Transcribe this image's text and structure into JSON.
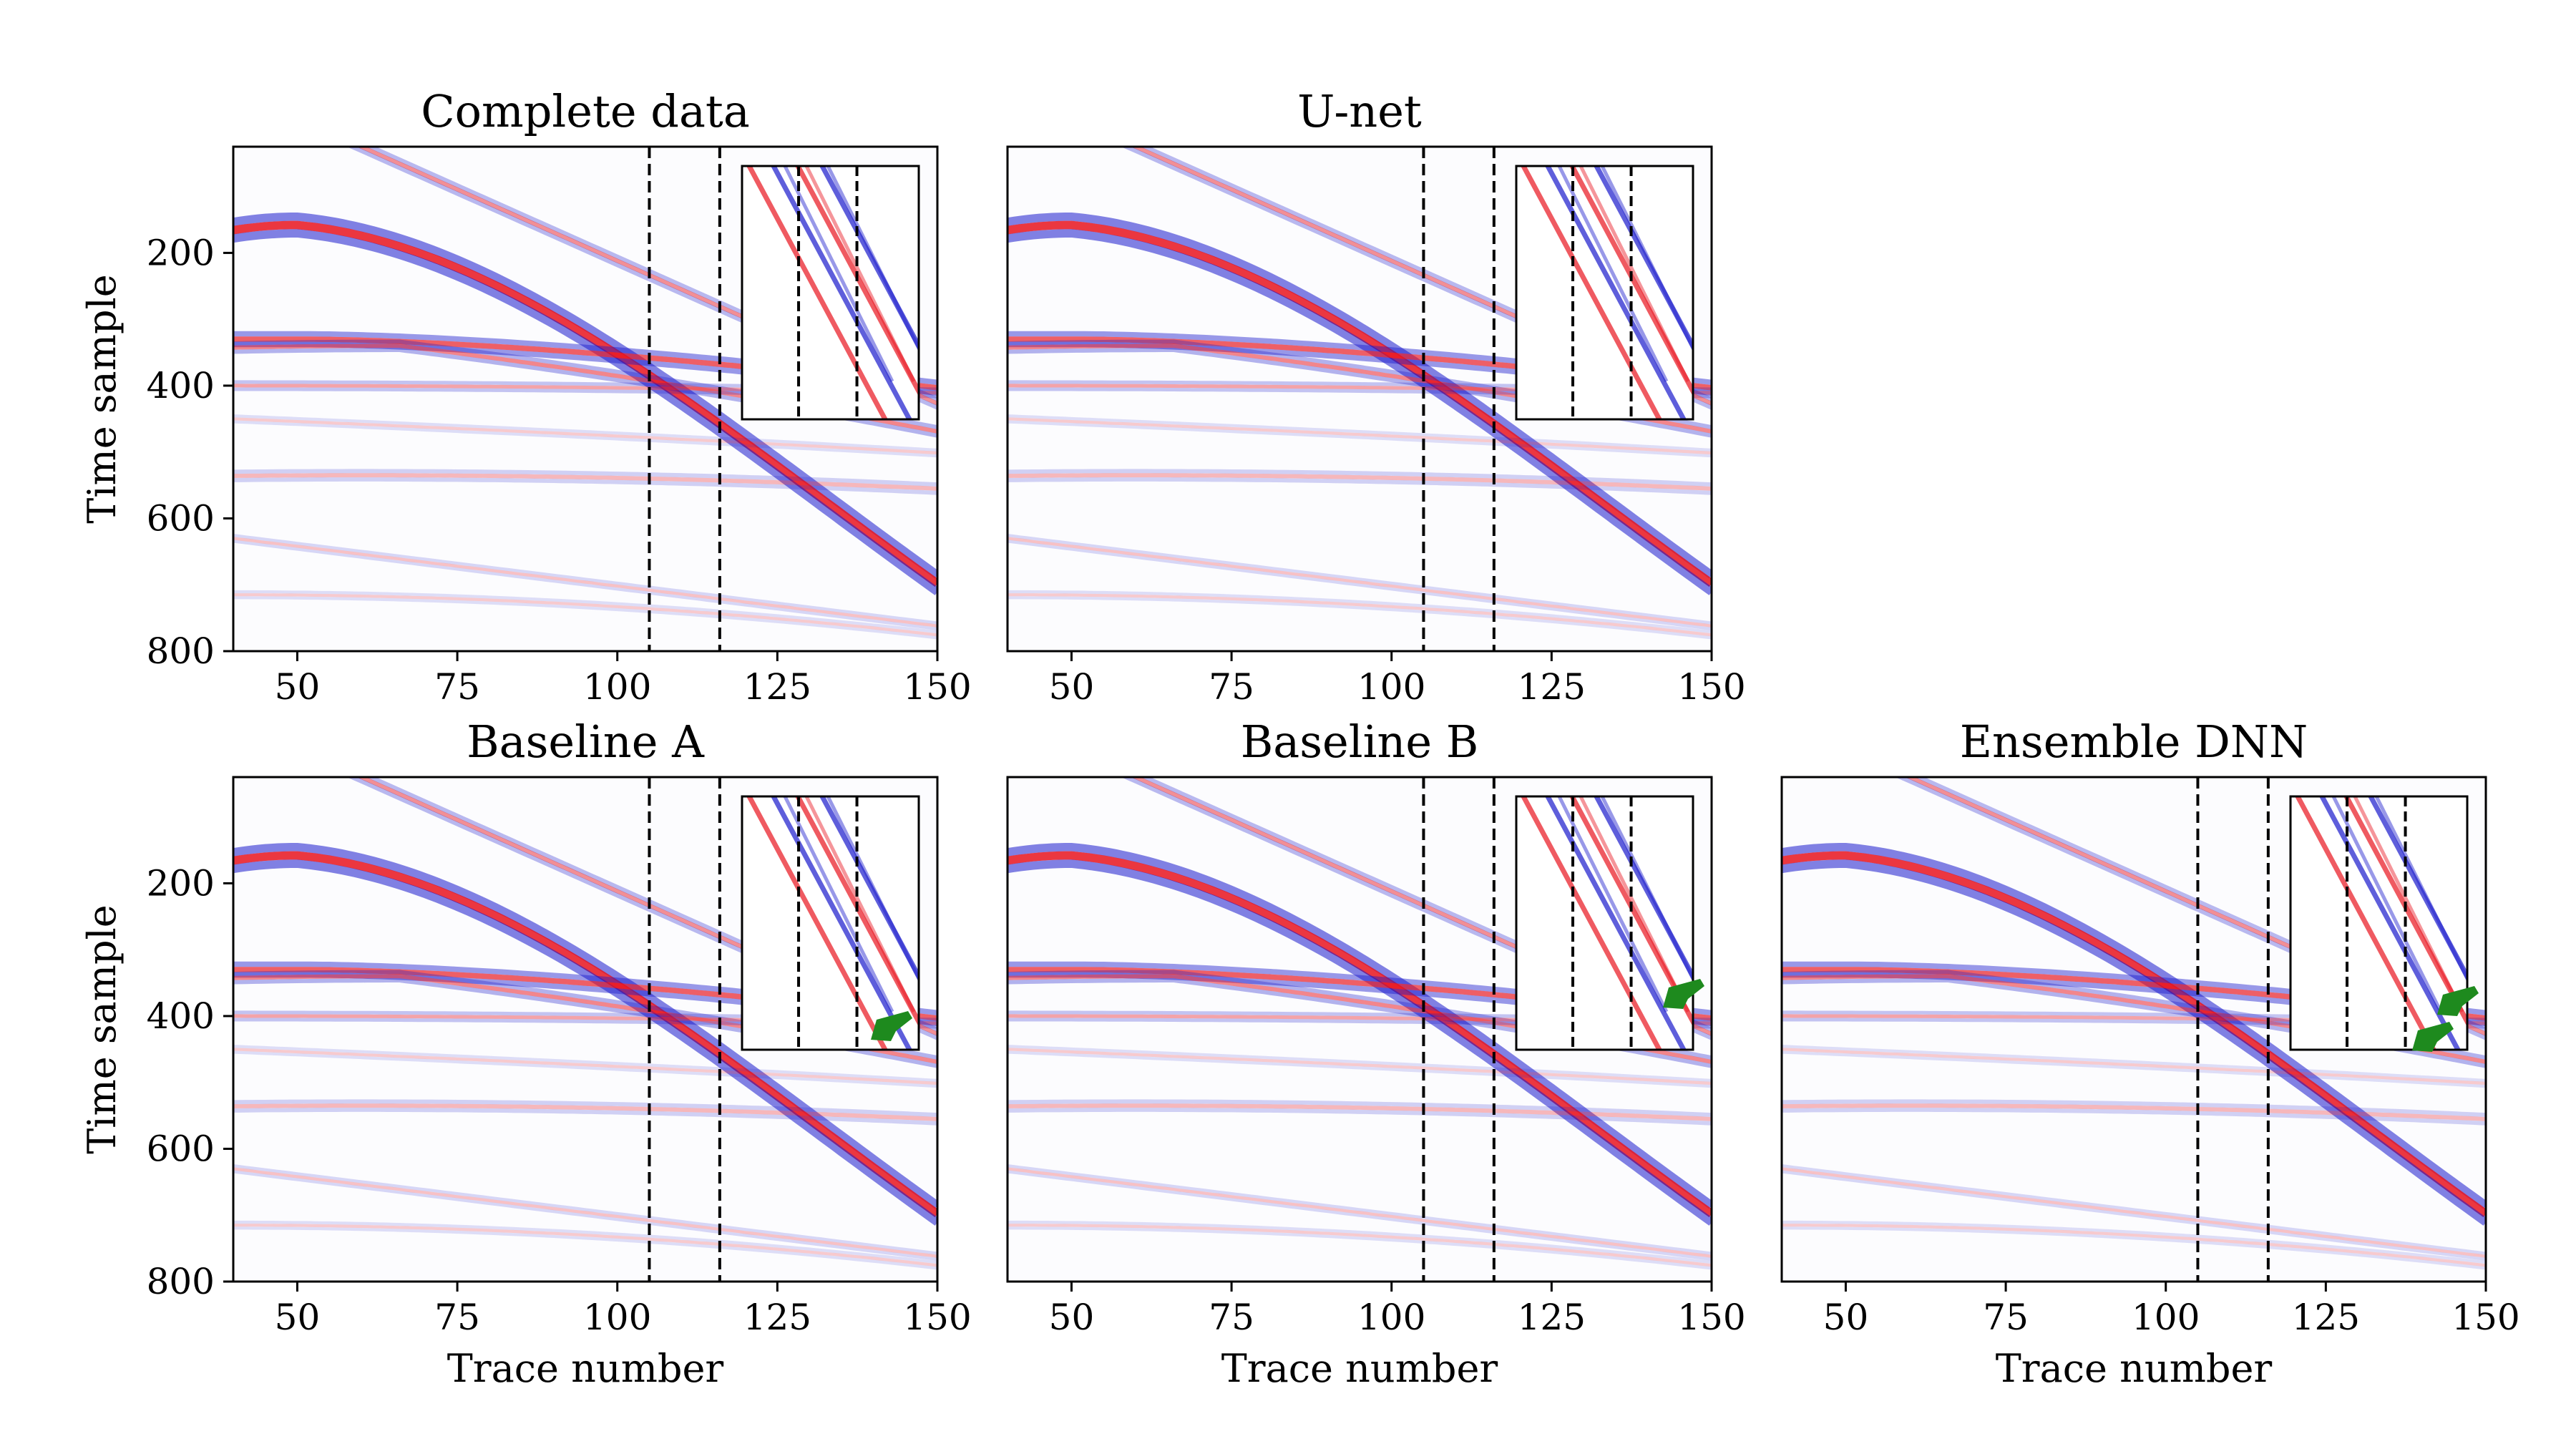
{
  "chart_data": [
    {
      "type": "heatmap",
      "title": "Complete data",
      "xlabel": "",
      "ylabel": "Time sample",
      "xlim": [
        40,
        150
      ],
      "ylim": [
        800,
        40
      ],
      "xticks": [
        50,
        75,
        100,
        125,
        150
      ],
      "yticks": [
        200,
        400,
        600,
        800
      ],
      "gap_markers_trace": [
        105,
        116
      ],
      "colormap": "seismic (blue-white-red)",
      "inset": {
        "gap_markers": true,
        "arrows": 0
      }
    },
    {
      "type": "heatmap",
      "title": "U-net",
      "xlabel": "",
      "ylabel": "",
      "xlim": [
        40,
        150
      ],
      "ylim": [
        800,
        40
      ],
      "xticks": [
        50,
        75,
        100,
        125,
        150
      ],
      "yticks": [],
      "gap_markers_trace": [
        105,
        116
      ],
      "colormap": "seismic (blue-white-red)",
      "inset": {
        "gap_markers": true,
        "arrows": 0
      }
    },
    {
      "type": "heatmap",
      "title": "Baseline A",
      "xlabel": "Trace number",
      "ylabel": "Time sample",
      "xlim": [
        40,
        150
      ],
      "ylim": [
        800,
        40
      ],
      "xticks": [
        50,
        75,
        100,
        125,
        150
      ],
      "yticks": [
        200,
        400,
        600,
        800
      ],
      "gap_markers_trace": [
        105,
        116
      ],
      "colormap": "seismic (blue-white-red)",
      "inset": {
        "gap_markers": true,
        "arrows": 1
      }
    },
    {
      "type": "heatmap",
      "title": "Baseline B",
      "xlabel": "Trace number",
      "ylabel": "",
      "xlim": [
        40,
        150
      ],
      "ylim": [
        800,
        40
      ],
      "xticks": [
        50,
        75,
        100,
        125,
        150
      ],
      "yticks": [],
      "gap_markers_trace": [
        105,
        116
      ],
      "colormap": "seismic (blue-white-red)",
      "inset": {
        "gap_markers": true,
        "arrows": 1
      }
    },
    {
      "type": "heatmap",
      "title": "Ensemble DNN",
      "xlabel": "Trace number",
      "ylabel": "",
      "xlim": [
        40,
        150
      ],
      "ylim": [
        800,
        40
      ],
      "xticks": [
        50,
        75,
        100,
        125,
        150
      ],
      "yticks": [],
      "gap_markers_trace": [
        105,
        116
      ],
      "colormap": "seismic (blue-white-red)",
      "inset": {
        "gap_markers": true,
        "arrows": 2
      }
    }
  ],
  "colors": {
    "positive": "#e8141e",
    "negative": "#1a1acc",
    "arrow": "#1e8a1e",
    "frame": "#000000"
  }
}
